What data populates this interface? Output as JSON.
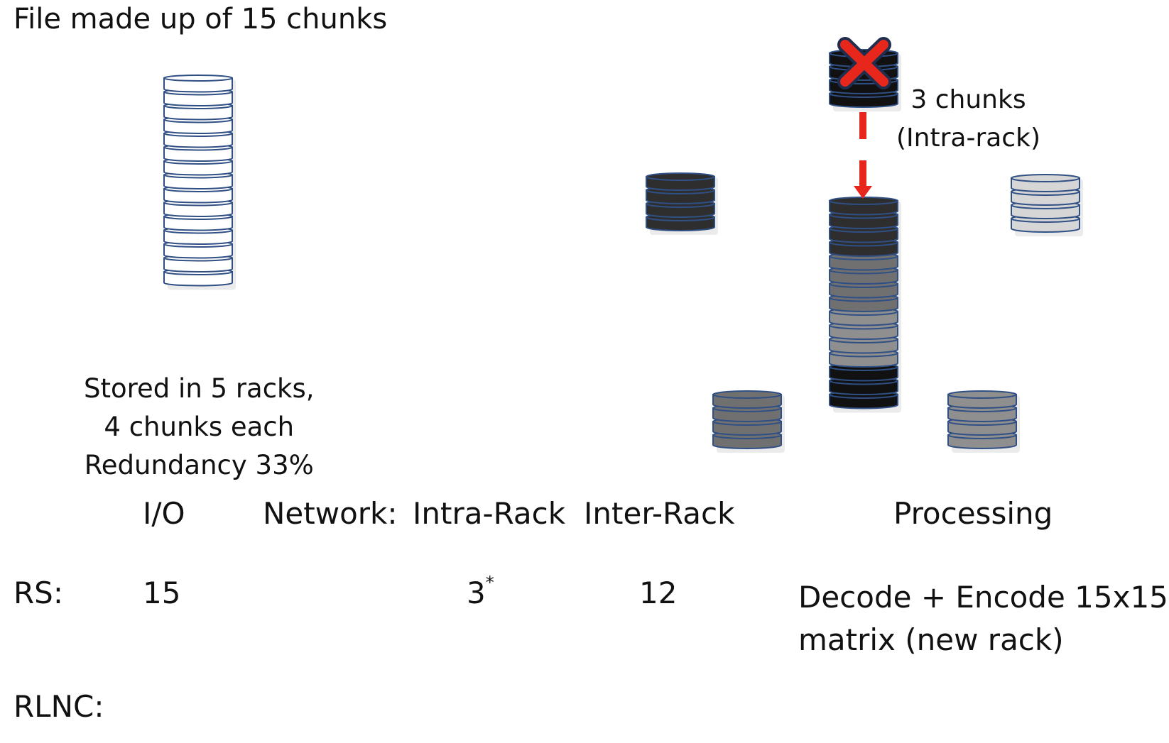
{
  "title": "File made up of 15 chunks",
  "storage_note": {
    "line1": "Stored in 5 racks,",
    "line2": "4 chunks each",
    "line3": "Redundancy 33%"
  },
  "failure_note": {
    "line1": "3 chunks",
    "line2": "(Intra-rack)"
  },
  "table": {
    "headers": {
      "io": "I/O",
      "network": "Network:",
      "intra_rack": "Intra-Rack",
      "inter_rack": "Inter-Rack",
      "processing": "Processing"
    },
    "rows": {
      "rs": {
        "label": "RS:",
        "io": "15",
        "intra_rack": "3",
        "intra_rack_mark": "*",
        "inter_rack": "12",
        "processing_line1": "Decode + Encode 15x15",
        "processing_line2": "matrix (new rack)"
      },
      "rlnc": {
        "label": "RLNC:"
      }
    }
  },
  "colors": {
    "chunk_outline": "#2f4f85",
    "chunk_white": "#ffffff",
    "chunk_black": "#111111",
    "chunk_dark": "#2e2e2e",
    "chunk_gray": "#707070",
    "chunk_midgray": "#8f8f8f",
    "chunk_lightgray": "#d6d6d6",
    "failure_red": "#e8271c"
  },
  "icons": {
    "failure": "red-x-icon",
    "transfer": "red-dashed-arrow-icon"
  }
}
